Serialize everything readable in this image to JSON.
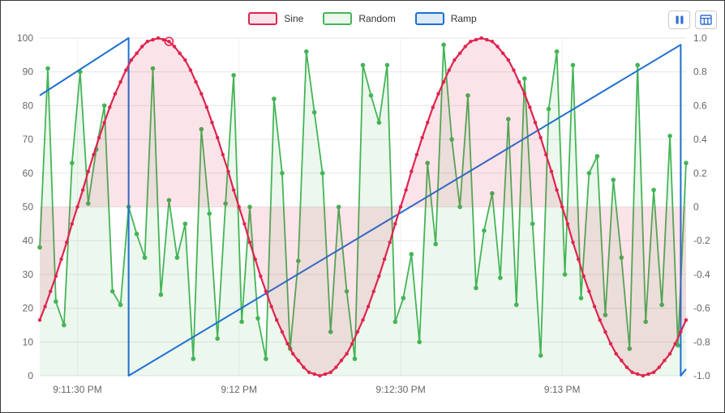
{
  "colors": {
    "sine": "#e0234e",
    "sine_fill": "rgba(224,35,78,0.12)",
    "random": "#44b556",
    "random_fill": "rgba(68,181,86,0.10)",
    "ramp": "#1d6fd2",
    "ramp_fill": "rgba(29,111,210,0.15)",
    "axis_text": "#666666",
    "grid": "#e6e6e6",
    "grid_vertical": "#f1f1f1",
    "icon": "#2e6fd3"
  },
  "toolbar": {
    "icons": [
      "pause-icon",
      "table-view-icon"
    ]
  },
  "chart_data": {
    "type": "line",
    "title": "",
    "legend_position": "top-center",
    "grid": true,
    "x_range": [
      0,
      120
    ],
    "x_axis": {
      "type": "time",
      "tick_labels": [
        "9:11:30 PM",
        "9:12 PM",
        "9:12:30 PM",
        "9:13 PM"
      ],
      "tick_t": [
        7,
        37,
        67,
        97
      ]
    },
    "left_axis": {
      "min": 0,
      "max": 100,
      "ticks": [
        0,
        10,
        20,
        30,
        40,
        50,
        60,
        70,
        80,
        90,
        100
      ]
    },
    "right_axis": {
      "min": -1,
      "max": 1,
      "tick_labels": [
        "-1.0",
        "-0.8",
        "-0.6",
        "-0.4",
        "-0.2",
        "0",
        "0.2",
        "0.4",
        "0.6",
        "0.8",
        "1.0"
      ]
    },
    "series": [
      {
        "name": "Sine",
        "color_key": "sine",
        "axis": "right",
        "start_s": 0,
        "interval_s": 1,
        "fill": "to-zero",
        "show_points": true,
        "point_radius": 2.2,
        "line_width": 2.2,
        "values": [
          -0.67,
          -0.59,
          -0.5,
          -0.41,
          -0.31,
          -0.21,
          -0.1,
          0,
          0.1,
          0.21,
          0.31,
          0.41,
          0.5,
          0.59,
          0.67,
          0.74,
          0.81,
          0.87,
          0.91,
          0.95,
          0.98,
          0.99,
          1,
          0.99,
          0.98,
          0.95,
          0.91,
          0.87,
          0.81,
          0.74,
          0.67,
          0.59,
          0.5,
          0.41,
          0.31,
          0.21,
          0.1,
          0,
          -0.1,
          -0.21,
          -0.31,
          -0.41,
          -0.5,
          -0.59,
          -0.67,
          -0.74,
          -0.81,
          -0.87,
          -0.91,
          -0.95,
          -0.98,
          -0.99,
          -1,
          -0.99,
          -0.98,
          -0.95,
          -0.91,
          -0.87,
          -0.81,
          -0.74,
          -0.67,
          -0.59,
          -0.5,
          -0.41,
          -0.31,
          -0.21,
          -0.1,
          0,
          0.1,
          0.21,
          0.31,
          0.41,
          0.5,
          0.59,
          0.67,
          0.74,
          0.81,
          0.87,
          0.91,
          0.95,
          0.98,
          0.99,
          1,
          0.99,
          0.98,
          0.95,
          0.91,
          0.87,
          0.81,
          0.74,
          0.67,
          0.59,
          0.5,
          0.41,
          0.31,
          0.21,
          0.1,
          0,
          -0.1,
          -0.21,
          -0.31,
          -0.41,
          -0.5,
          -0.59,
          -0.67,
          -0.74,
          -0.81,
          -0.87,
          -0.91,
          -0.95,
          -0.98,
          -0.99,
          -1,
          -0.99,
          -0.98,
          -0.95,
          -0.91,
          -0.87,
          -0.81,
          -0.74,
          -0.67
        ]
      },
      {
        "name": "Random",
        "color_key": "random",
        "axis": "left",
        "start_s": 0,
        "interval_s": 1.5,
        "fill": "to-bottom",
        "show_points": true,
        "point_radius": 2.8,
        "line_width": 1.8,
        "values": [
          38,
          91,
          22,
          15,
          63,
          90,
          51,
          67,
          80,
          25,
          21,
          50,
          42,
          35,
          91,
          24,
          52,
          35,
          45,
          5,
          73,
          48,
          11,
          51,
          89,
          16,
          50,
          17,
          5,
          82,
          60,
          8,
          34,
          96,
          78,
          60,
          13,
          50,
          25,
          5,
          92,
          83,
          75,
          92,
          16,
          23,
          36,
          10,
          63,
          39,
          98,
          70,
          50,
          83,
          26,
          43,
          54,
          29,
          76,
          21,
          88,
          45,
          6,
          79,
          96,
          30,
          92,
          23,
          60,
          65,
          18,
          58,
          35,
          8,
          92,
          16,
          55,
          21,
          71,
          9,
          63
        ]
      },
      {
        "name": "Ramp",
        "color_key": "ramp",
        "axis": "right",
        "fill": "none",
        "show_points": false,
        "line_width": 2,
        "points_tv": [
          [
            0,
            0.66
          ],
          [
            16.5,
            1.0
          ],
          [
            16.5,
            -1.0
          ],
          [
            119,
            0.96
          ],
          [
            119,
            -1.0
          ],
          [
            120,
            -0.96
          ]
        ]
      }
    ],
    "draw_order": [
      1,
      2,
      0
    ],
    "highlight": {
      "series": "Sine",
      "index": 24
    }
  }
}
